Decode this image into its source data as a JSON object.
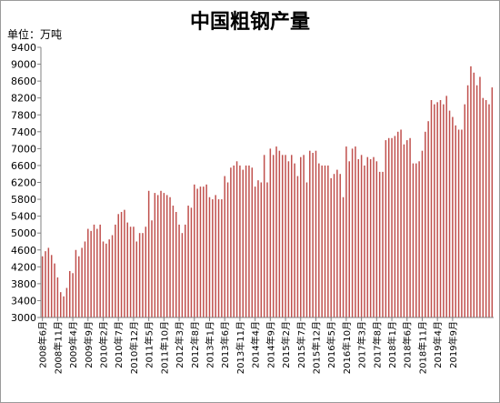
{
  "chart_data": {
    "type": "bar",
    "title": "中国粗钢产量",
    "unit_label": "单位：万吨",
    "ylim": [
      3000,
      9400
    ],
    "yticks": [
      3000,
      3400,
      3800,
      4200,
      4600,
      5000,
      5400,
      5800,
      6200,
      6600,
      7000,
      7400,
      7800,
      8200,
      8600,
      9000,
      9400
    ],
    "grid": false,
    "legend": "none",
    "bar_color": "#c0504d",
    "x_tick_labels": [
      "2008年6月",
      "2008年11月",
      "2009年4月",
      "2009年9月",
      "2010年2月",
      "2010年7月",
      "2010年12月",
      "2011年5月",
      "2011年10月",
      "2012年3月",
      "2012年8月",
      "2013年1月",
      "2013年6月",
      "2013年11月",
      "2014年4月",
      "2014年9月",
      "2015年2月",
      "2015年7月",
      "2015年12月",
      "2016年5月",
      "2016年10月",
      "2017年3月",
      "2017年8月",
      "2018年1月",
      "2018年6月",
      "2018年11月",
      "2019年4月",
      "2019年9月"
    ],
    "start": "2008-06",
    "values": [
      4450,
      4570,
      4650,
      4480,
      4280,
      3950,
      3600,
      3500,
      3700,
      4100,
      4050,
      4600,
      4450,
      4650,
      4800,
      5100,
      5050,
      5200,
      5100,
      5200,
      4800,
      4750,
      4850,
      4950,
      5200,
      5450,
      5500,
      5550,
      5250,
      5150,
      5150,
      4800,
      5000,
      5000,
      5150,
      6000,
      5300,
      5950,
      5900,
      6000,
      5950,
      5900,
      5850,
      5650,
      5500,
      5200,
      5000,
      5200,
      5650,
      5600,
      6150,
      6050,
      6100,
      6100,
      6150,
      5850,
      5800,
      5900,
      5800,
      5800,
      6350,
      6200,
      6550,
      6600,
      6700,
      6600,
      6500,
      6600,
      6600,
      6550,
      6100,
      6250,
      6200,
      6850,
      6200,
      7000,
      6850,
      7050,
      6950,
      6850,
      6850,
      6700,
      6850,
      6650,
      6350,
      6800,
      6850,
      6200,
      6950,
      6900,
      6950,
      6650,
      6600,
      6600,
      6600,
      6300,
      6400,
      6500,
      6400,
      5850,
      7050,
      6700,
      7000,
      7050,
      6750,
      6850,
      6600,
      6800,
      6750,
      6800,
      6700,
      6450,
      6450,
      7200,
      7250,
      7250,
      7300,
      7400,
      7450,
      7100,
      7200,
      7250,
      6650,
      6650,
      6700,
      6950,
      7400,
      7650,
      8150,
      8050,
      8100,
      8150,
      8050,
      8250,
      7900,
      7750,
      7550,
      7450,
      7450,
      8050,
      8500,
      8950,
      8800,
      8500,
      8700,
      8200,
      8150,
      8050,
      8450
    ]
  }
}
